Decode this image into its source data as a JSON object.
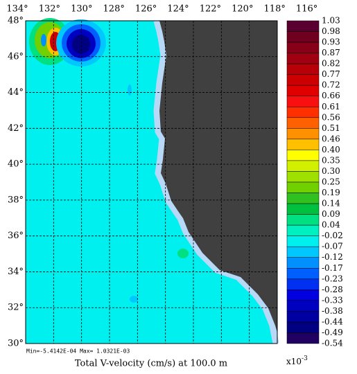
{
  "chart_data": {
    "type": "contour",
    "title": "Total V-velocity (cm/s) at 100.0 m",
    "stats": "Min=-5.4142E-04  Max= 1.0321E-03",
    "scale_base": "x10",
    "scale_exponent": "-3",
    "xlim": [
      134,
      116
    ],
    "ylim": [
      30,
      48
    ],
    "xticks": [
      {
        "value": 134,
        "label": "134°"
      },
      {
        "value": 132,
        "label": "132°"
      },
      {
        "value": 130,
        "label": "130°"
      },
      {
        "value": 128,
        "label": "128°"
      },
      {
        "value": 126,
        "label": "126°"
      },
      {
        "value": 124,
        "label": "124°"
      },
      {
        "value": 122,
        "label": "122°"
      },
      {
        "value": 120,
        "label": "120°"
      },
      {
        "value": 118,
        "label": "118°"
      },
      {
        "value": 116,
        "label": "116°"
      }
    ],
    "yticks": [
      {
        "value": 48,
        "label": "48°"
      },
      {
        "value": 46,
        "label": "46°"
      },
      {
        "value": 44,
        "label": "44°"
      },
      {
        "value": 42,
        "label": "42°"
      },
      {
        "value": 40,
        "label": "40°"
      },
      {
        "value": 38,
        "label": "38°"
      },
      {
        "value": 36,
        "label": "36°"
      },
      {
        "value": 34,
        "label": "34°"
      },
      {
        "value": 32,
        "label": "32°"
      },
      {
        "value": 30,
        "label": "30°"
      }
    ],
    "grid": true,
    "levels": [
      1.03,
      0.98,
      0.93,
      0.87,
      0.82,
      0.77,
      0.72,
      0.66,
      0.61,
      0.56,
      0.51,
      0.46,
      {
        "value": 0.4,
        "label": "0.40"
      },
      0.35,
      {
        "value": 0.3,
        "label": "0.30"
      },
      0.25,
      0.19,
      0.14,
      0.09,
      0.04,
      -0.02,
      -0.07,
      -0.12,
      -0.17,
      -0.23,
      -0.28,
      -0.33,
      -0.38,
      -0.44,
      -0.49,
      -0.54
    ],
    "level_colors": [
      "#5a0030",
      "#700020",
      "#880018",
      "#a00010",
      "#b80008",
      "#cc0000",
      "#e00000",
      "#f81010",
      "#ff3000",
      "#ff6000",
      "#ff9000",
      "#ffc000",
      "#ffff00",
      "#d0f000",
      "#a0e000",
      "#70d000",
      "#30c020",
      "#00c040",
      "#00e080",
      "#00f0c0",
      "#00f0f0",
      "#00c8ff",
      "#0090ff",
      "#0060ff",
      "#0030f0",
      "#0000e0",
      "#0000c0",
      "#0000a0",
      "#000080",
      "#200060"
    ]
  }
}
